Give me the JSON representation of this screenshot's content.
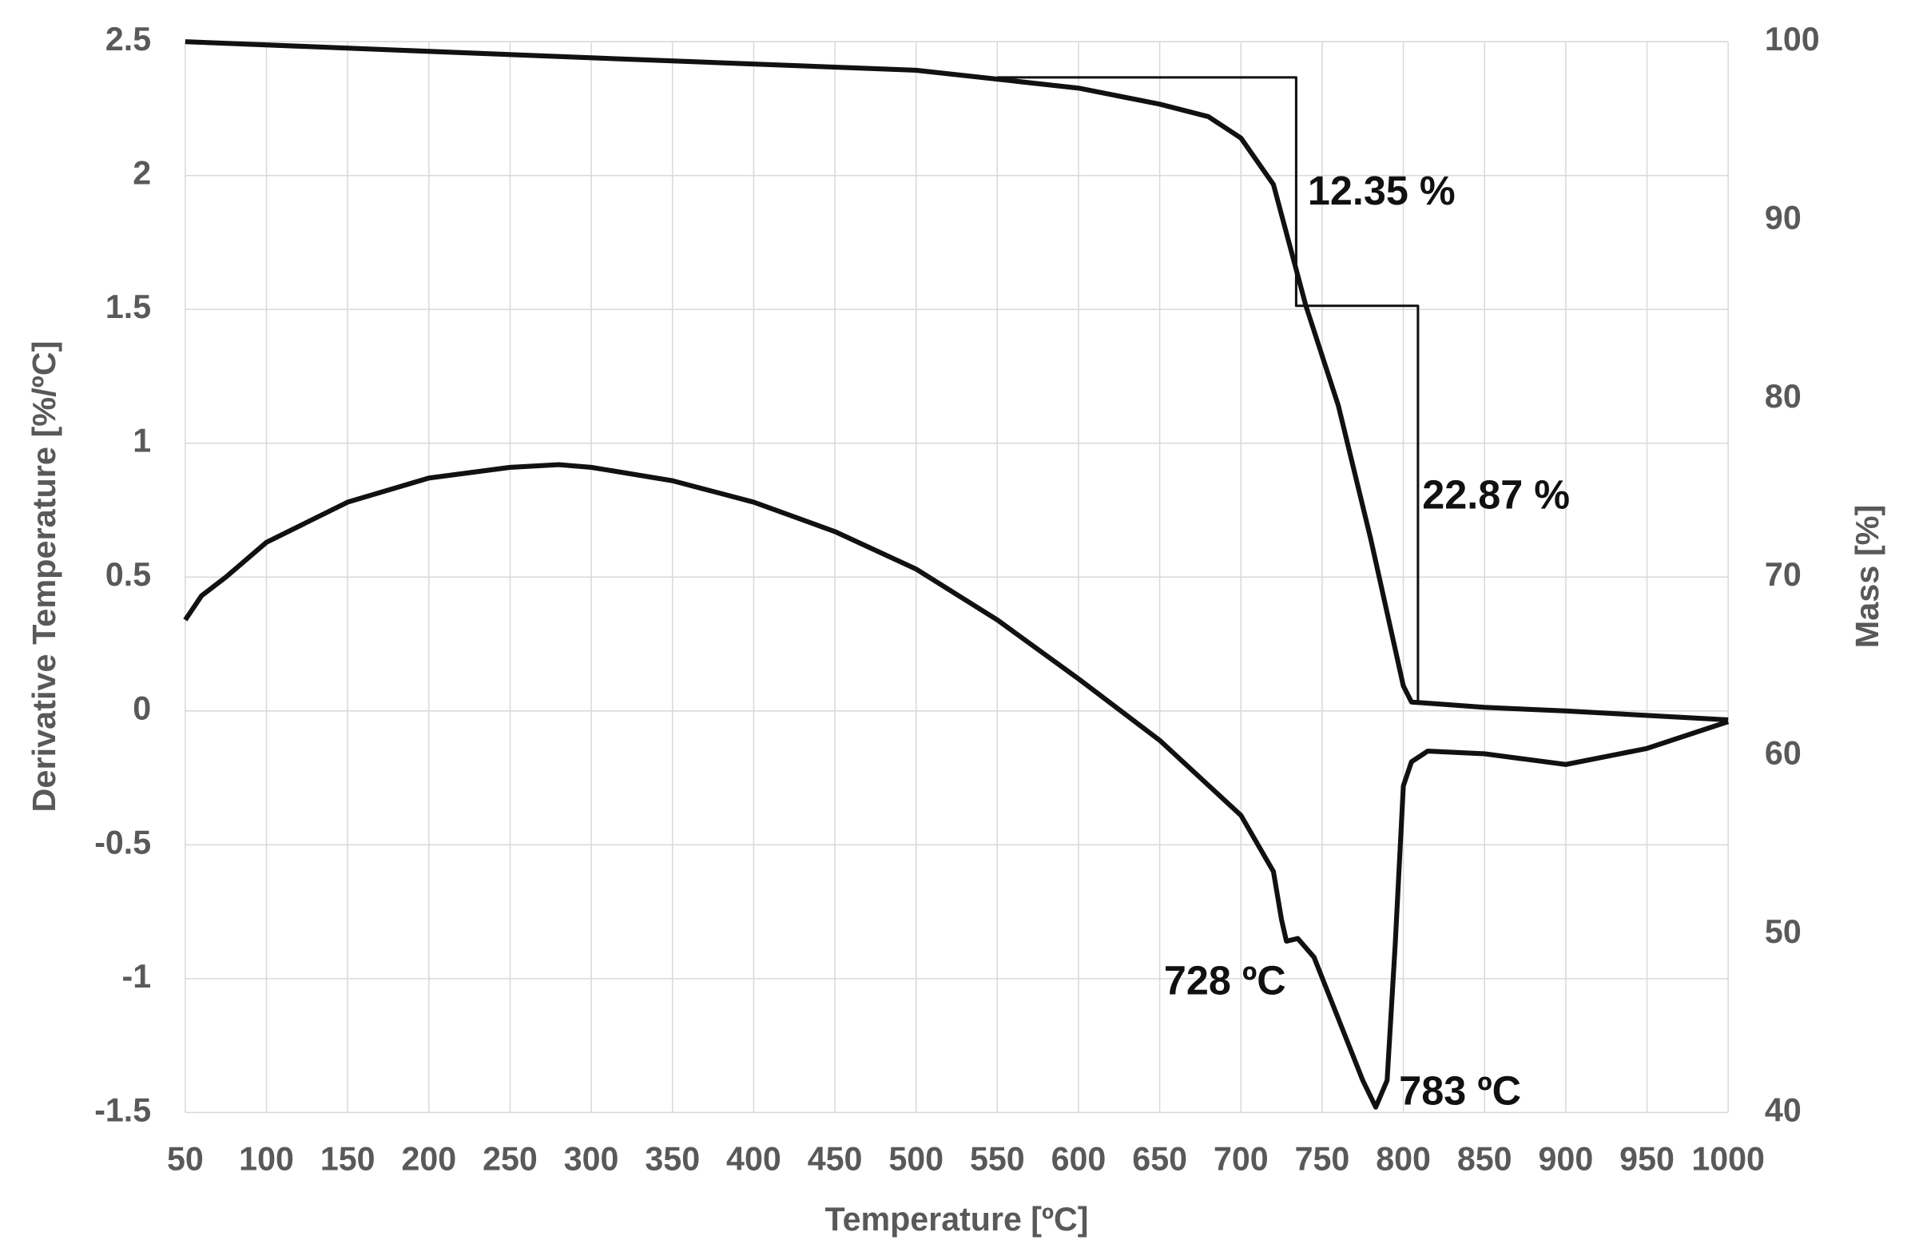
{
  "chart_data": {
    "type": "line",
    "x_label": "Temperature [ºC]",
    "y_label": "Derivative Temperature [%/ºC]",
    "y2_label": "Mass [%]",
    "xlim": [
      50,
      1000
    ],
    "xticks": [
      50,
      100,
      150,
      200,
      250,
      300,
      350,
      400,
      450,
      500,
      550,
      600,
      650,
      700,
      750,
      800,
      850,
      900,
      950,
      1000
    ],
    "ylim": [
      -1.5,
      2.5
    ],
    "yticks": [
      2.5,
      2,
      1.5,
      1,
      0.5,
      0,
      -0.5,
      -1,
      -1.5
    ],
    "y2lim": [
      40,
      100
    ],
    "y2ticks": [
      100,
      90,
      80,
      70,
      60,
      50,
      40
    ],
    "grid": true,
    "series": [
      {
        "color": "#111111",
        "x": [
          50,
          60,
          75,
          100,
          150,
          200,
          250,
          280,
          300,
          350,
          400,
          450,
          500,
          550,
          600,
          650,
          700,
          720,
          725,
          728,
          735,
          745,
          760,
          775,
          783,
          790,
          795,
          800,
          805,
          815,
          850,
          900,
          950,
          1000
        ],
        "values": [
          0.34,
          0.43,
          0.5,
          0.63,
          0.78,
          0.87,
          0.91,
          0.92,
          0.91,
          0.86,
          0.78,
          0.67,
          0.53,
          0.34,
          0.12,
          -0.11,
          -0.39,
          -0.6,
          -0.78,
          -0.86,
          -0.85,
          -0.92,
          -1.15,
          -1.38,
          -1.48,
          -1.38,
          -0.87,
          -0.28,
          -0.19,
          -0.15,
          -0.16,
          -0.2,
          -0.14,
          -0.04
        ]
      },
      {
        "color": "#111111",
        "axis": "y2",
        "x": [
          50,
          300,
          500,
          550,
          600,
          650,
          680,
          700,
          720,
          740,
          760,
          780,
          790,
          800,
          805,
          850,
          900,
          1000
        ],
        "values": [
          100,
          99.1,
          98.4,
          97.9,
          97.4,
          96.5,
          95.8,
          94.6,
          92,
          85.2,
          79.6,
          72.1,
          68,
          63.9,
          63,
          62.7,
          62.5,
          62
        ]
      },
      {
        "color": "#111111",
        "axis": "y2",
        "x": [
          550,
          734,
          734,
          809,
          809
        ],
        "values": [
          98,
          98,
          85.2,
          85.2,
          63
        ]
      }
    ],
    "annotations": [
      "12.35 %",
      "22.87 %",
      "728 ºC",
      "783 ºC"
    ]
  }
}
